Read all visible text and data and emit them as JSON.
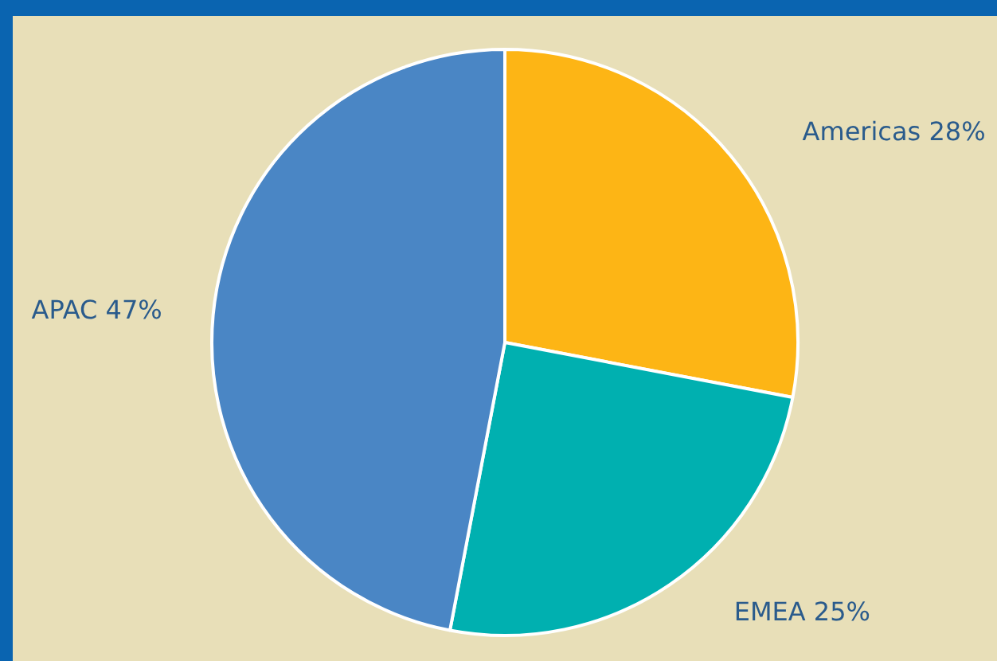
{
  "chart_data": {
    "type": "pie",
    "categories": [
      "Americas",
      "EMEA",
      "APAC"
    ],
    "values": [
      28,
      25,
      47
    ],
    "colors": [
      "#fdb515",
      "#00b0b0",
      "#4a86c5"
    ],
    "value_labels": [
      "28%",
      "25%",
      "47%"
    ],
    "legend": false
  }
}
